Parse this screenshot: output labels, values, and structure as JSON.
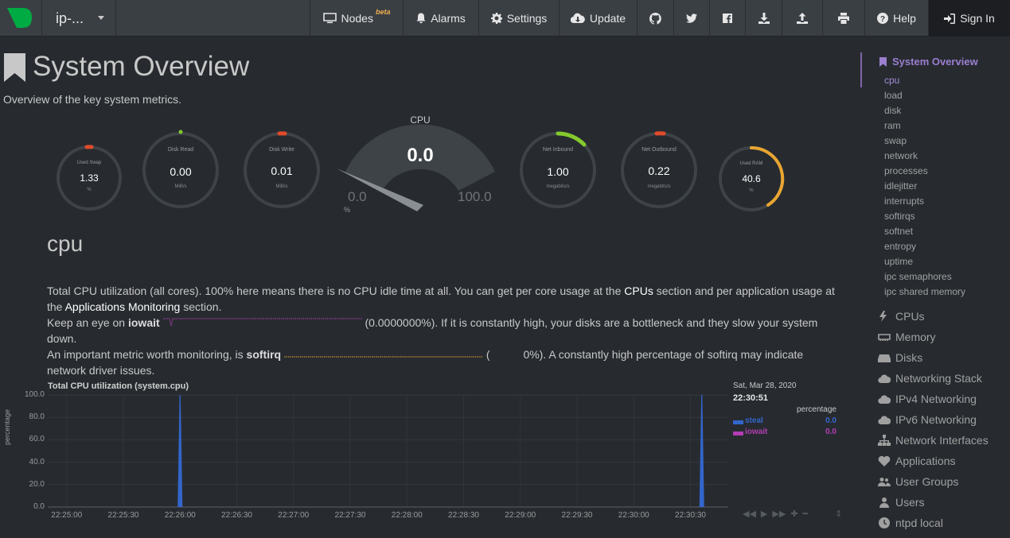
{
  "navbar": {
    "host": "ip-...",
    "nodes_label": "Nodes",
    "nodes_badge": "beta",
    "alarms_label": "Alarms",
    "settings_label": "Settings",
    "update_label": "Update",
    "help_label": "Help",
    "signin_label": "Sign In",
    "icon_items": [
      "github-icon",
      "twitter-icon",
      "facebook-icon",
      "download-icon",
      "upload-icon",
      "print-icon"
    ]
  },
  "page": {
    "title": "System Overview",
    "subtitle": "Overview of the key system metrics."
  },
  "gauges": {
    "swap": {
      "label": "Used Swap",
      "value": "1.33",
      "unit": "%"
    },
    "disk_read": {
      "label": "Disk Read",
      "value": "0.00",
      "unit": "MiB/s"
    },
    "disk_write": {
      "label": "Disk Write",
      "value": "0.01",
      "unit": "MiB/s"
    },
    "cpu": {
      "label": "CPU",
      "value": "0.0",
      "min": "0.0",
      "max": "100.0",
      "unit": "%"
    },
    "net_inbound": {
      "label": "Net Inbound",
      "value": "1.00",
      "unit": "megabits/s"
    },
    "net_outbound": {
      "label": "Net Outbound",
      "value": "0.22",
      "unit": "megabits/s"
    },
    "ram": {
      "label": "Used RAM",
      "value": "40.6",
      "unit": "%",
      "fill_percent": 40.6
    }
  },
  "section": {
    "heading": "cpu",
    "p1_a": "Total CPU utilization (all cores). 100% here means there is no CPU idle time at all. You can get per core usage at the",
    "p1_cpus": "CPUs",
    "p1_b": "section and per application usage at the",
    "p1_apps": "Applications Monitoring",
    "p1_c": "section.",
    "p2_a": "Keep an eye on",
    "p2_iowait": "iowait",
    "p2_b": "(0.0000000%). If it is constantly high, your disks are a bottleneck and they slow your system down.",
    "p3_a": "An important metric worth monitoring, is",
    "p3_softirq": "softirq",
    "p3_b": "(",
    "p3_c": "0%). A constantly high percentage of softirq may indicate network driver issues."
  },
  "chart_data": {
    "type": "area",
    "title": "Total CPU utilization (system.cpu)",
    "ylabel": "percentage",
    "ylim": [
      0,
      100
    ],
    "yticks": [
      "100.0",
      "80.0",
      "60.0",
      "40.0",
      "20.0",
      "0.0"
    ],
    "xticks": [
      "22:25:00",
      "22:25:30",
      "22:26:00",
      "22:26:30",
      "22:27:00",
      "22:27:30",
      "22:28:00",
      "22:28:30",
      "22:29:00",
      "22:29:30",
      "22:30:00",
      "22:30:30"
    ],
    "series": [
      {
        "name": "steal",
        "color": "#3366cc",
        "spikes": [
          {
            "t": "22:26:00",
            "v": 100
          },
          {
            "t": "22:30:36",
            "v": 100
          }
        ]
      },
      {
        "name": "iowait",
        "color": "#b43db4",
        "spikes": []
      }
    ],
    "legend": {
      "date": "Sat, Mar 28, 2020",
      "time": "22:30:51",
      "units": "percentage",
      "steal_value": "0.0",
      "iowait_value": "0.0"
    }
  },
  "sidebar": {
    "active": "System Overview",
    "subitems": [
      "cpu",
      "load",
      "disk",
      "ram",
      "swap",
      "network",
      "processes",
      "idlejitter",
      "interrupts",
      "softirqs",
      "softnet",
      "entropy",
      "uptime",
      "ipc semaphores",
      "ipc shared memory"
    ],
    "sections": [
      "CPUs",
      "Memory",
      "Disks",
      "Networking Stack",
      "IPv4 Networking",
      "IPv6 Networking",
      "Network Interfaces",
      "Applications",
      "User Groups",
      "Users",
      "ntpd local"
    ]
  },
  "colors": {
    "accent": "#9b7fd0",
    "green": "#85c92e",
    "orange": "#e9a531",
    "red": "#e14b2a",
    "steal": "#3366cc",
    "iowait": "#b43db4"
  }
}
